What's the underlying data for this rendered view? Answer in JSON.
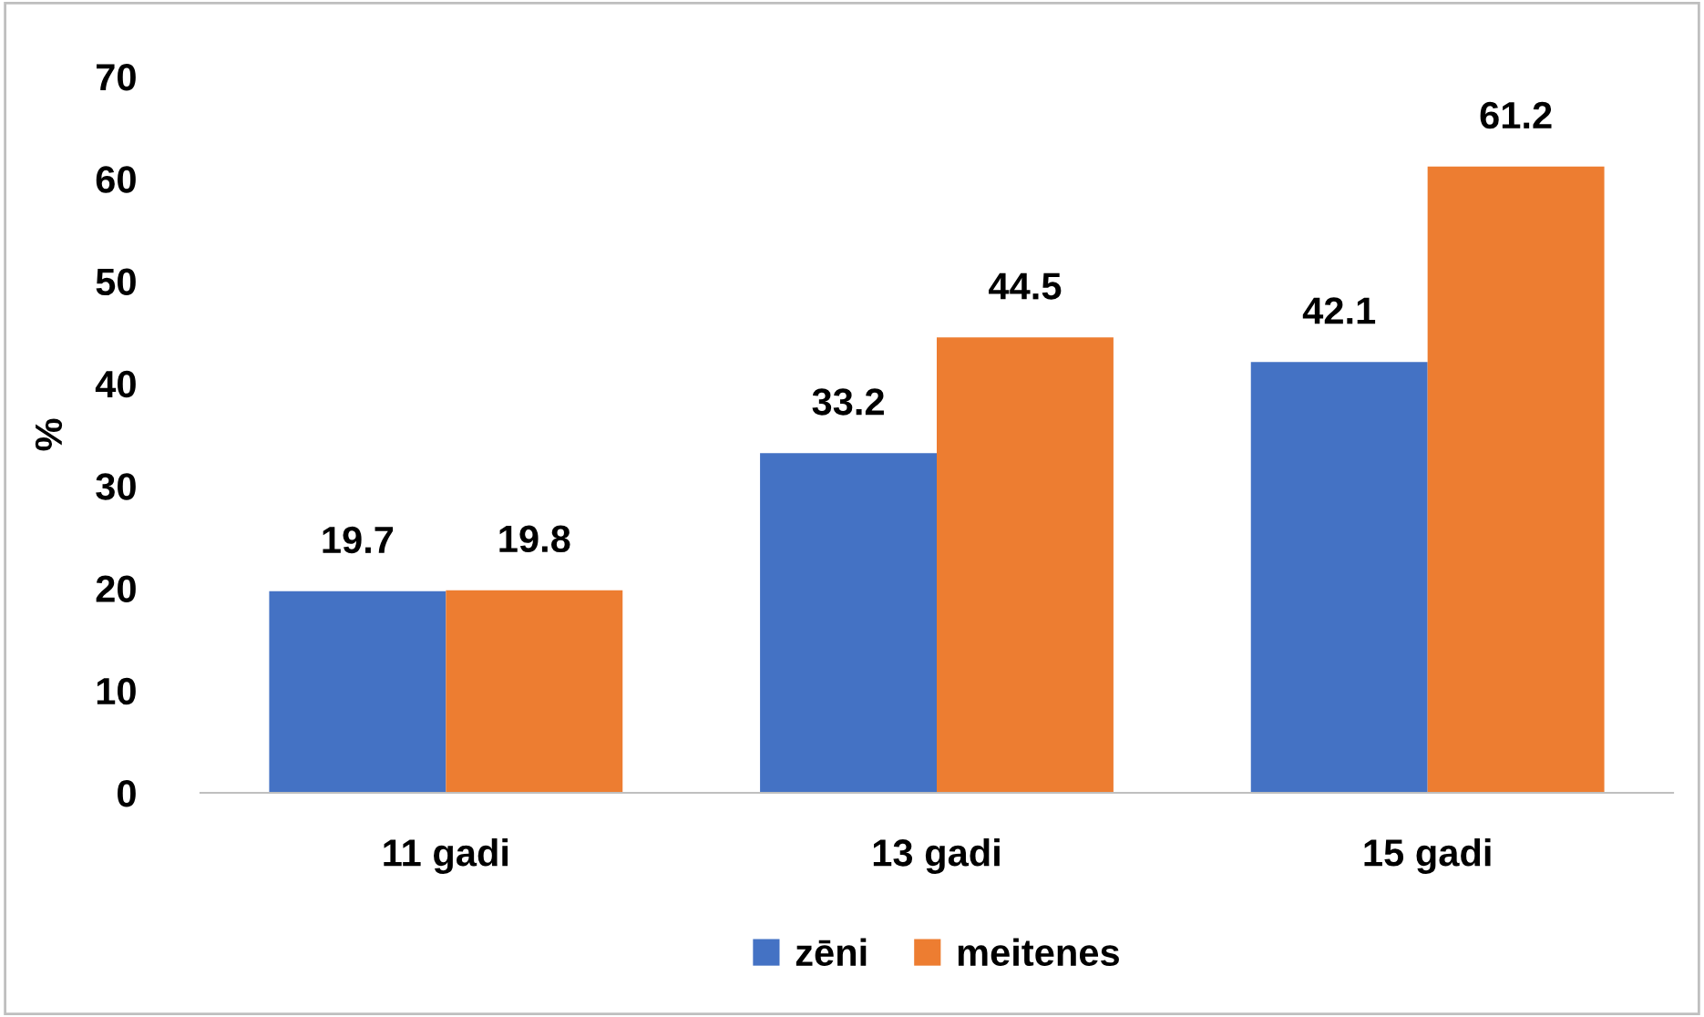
{
  "chart_data": {
    "type": "bar",
    "ylabel": "%",
    "categories": [
      "11 gadi",
      "13 gadi",
      "15 gadi"
    ],
    "series": [
      {
        "name": "zēni",
        "color": "#4472c4",
        "values": [
          19.7,
          33.2,
          42.1
        ]
      },
      {
        "name": "meitenes",
        "color": "#ed7d31",
        "values": [
          19.8,
          44.5,
          61.2
        ]
      }
    ],
    "ylim": [
      0,
      70
    ],
    "yticks": [
      0,
      10,
      20,
      30,
      40,
      50,
      60,
      70
    ],
    "data_labels": true,
    "grid": false,
    "legend": "bottom"
  }
}
